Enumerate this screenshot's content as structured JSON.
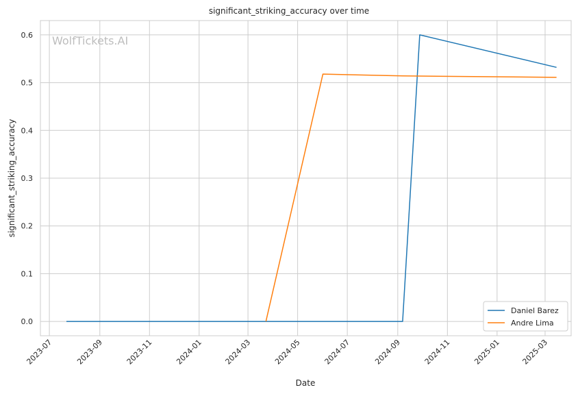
{
  "watermark": "WolfTickets.AI",
  "chart_data": {
    "type": "line",
    "title": "significant_striking_accuracy over time",
    "xlabel": "Date",
    "ylabel": "significant_striking_accuracy",
    "x_ticks": [
      "2023-07",
      "2023-09",
      "2023-11",
      "2024-01",
      "2024-03",
      "2024-05",
      "2024-07",
      "2024-09",
      "2024-11",
      "2025-01",
      "2025-03"
    ],
    "y_ticks": [
      "0.0",
      "0.1",
      "0.2",
      "0.3",
      "0.4",
      "0.5",
      "0.6"
    ],
    "ylim": [
      -0.03,
      0.63
    ],
    "xlim": [
      "2023-06-20",
      "2025-04-02"
    ],
    "grid": true,
    "legend_position": "bottom-right",
    "series": [
      {
        "name": "Daniel Barez",
        "color": "#1f77b4",
        "points": [
          {
            "x": "2023-07-22",
            "y": 0.0
          },
          {
            "x": "2024-09-07",
            "y": 0.0
          },
          {
            "x": "2024-09-28",
            "y": 0.6
          },
          {
            "x": "2025-03-15",
            "y": 0.532
          }
        ]
      },
      {
        "name": "Andre Lima",
        "color": "#ff7f0e",
        "points": [
          {
            "x": "2024-03-23",
            "y": 0.0
          },
          {
            "x": "2024-06-01",
            "y": 0.518
          },
          {
            "x": "2024-09-07",
            "y": 0.514
          },
          {
            "x": "2025-03-15",
            "y": 0.511
          }
        ]
      }
    ]
  }
}
